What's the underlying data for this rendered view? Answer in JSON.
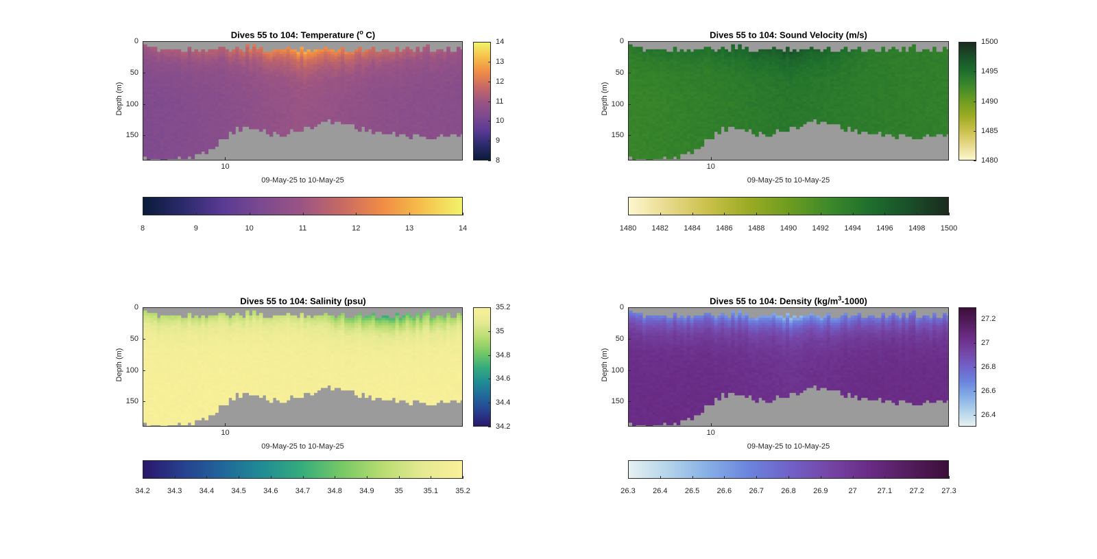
{
  "chart_data": [
    {
      "type": "heatmap",
      "title_main": "Dives 55 to 104: Temperature (",
      "title_sup": "o",
      "title_end": " C)",
      "xlabel": "09-May-25 to 10-May-25",
      "ylabel": "Depth (m)",
      "x_tick_labels": [
        "10"
      ],
      "y_tick_labels": [
        "0",
        "50",
        "100",
        "150"
      ],
      "y_ticks": [
        0,
        50,
        100,
        150
      ],
      "ylim": [
        0,
        190
      ],
      "colorbar_range": [
        8,
        14
      ],
      "colorbar_ticks": [
        "8",
        "9",
        "10",
        "11",
        "12",
        "13",
        "14"
      ],
      "horizontal_colorbar_ticks": [
        "8",
        "9",
        "10",
        "11",
        "12",
        "13",
        "14"
      ],
      "colormap": [
        "#0b1b3a",
        "#2b2a6b",
        "#5a3a94",
        "#7d4a8f",
        "#9c5583",
        "#c86a63",
        "#f08c45",
        "#f6c04a",
        "#f1f36a"
      ],
      "surface_values": [
        11.2,
        11.6,
        13.0,
        11.8,
        11.0
      ],
      "deep_values": [
        10.3,
        10.5,
        10.9,
        10.6,
        10.5
      ],
      "fill_color": "#9b9b9b"
    },
    {
      "type": "heatmap",
      "title_main": "Dives 55 to 104: Sound Velocity (m/s)",
      "title_sup": "",
      "title_end": "",
      "xlabel": "09-May-25 to 10-May-25",
      "ylabel": "Depth (m)",
      "x_tick_labels": [
        "10"
      ],
      "y_tick_labels": [
        "0",
        "50",
        "100",
        "150"
      ],
      "y_ticks": [
        0,
        50,
        100,
        150
      ],
      "ylim": [
        0,
        190
      ],
      "colorbar_range": [
        1480,
        1500
      ],
      "colorbar_ticks": [
        "1480",
        "1485",
        "1490",
        "1495",
        "1500"
      ],
      "horizontal_colorbar_ticks": [
        "1480",
        "1482",
        "1484",
        "1486",
        "1488",
        "1490",
        "1492",
        "1494",
        "1496",
        "1498",
        "1500"
      ],
      "colormap": [
        "#fdf7cf",
        "#e7d98a",
        "#c9c04a",
        "#9bab24",
        "#6e9c20",
        "#3e8a2a",
        "#1f6f2d",
        "#195029",
        "#1b2b1e"
      ],
      "surface_values": [
        1494.5,
        1495.0,
        1497.5,
        1494.0,
        1493.5
      ],
      "deep_values": [
        1493.0,
        1493.5,
        1494.2,
        1493.8,
        1493.5
      ],
      "fill_color": "#9b9b9b"
    },
    {
      "type": "heatmap",
      "title_main": "Dives 55 to 104: Salinity (psu)",
      "title_sup": "",
      "title_end": "",
      "xlabel": "09-May-25 to 10-May-25",
      "ylabel": "Depth (m)",
      "x_tick_labels": [
        "10"
      ],
      "y_tick_labels": [
        "0",
        "50",
        "100",
        "150"
      ],
      "y_ticks": [
        0,
        50,
        100,
        150
      ],
      "ylim": [
        0,
        190
      ],
      "colorbar_range": [
        34.2,
        35.2
      ],
      "colorbar_ticks": [
        "34.2",
        "34.4",
        "34.6",
        "34.8",
        "35",
        "35.2"
      ],
      "horizontal_colorbar_ticks": [
        "34.2",
        "34.3",
        "34.4",
        "34.5",
        "34.6",
        "34.7",
        "34.8",
        "34.9",
        "35",
        "35.1",
        "35.2"
      ],
      "colormap": [
        "#2a176b",
        "#27408f",
        "#21679a",
        "#1f8d94",
        "#37ad7c",
        "#78c965",
        "#b8dc71",
        "#e5ea92",
        "#faf09a"
      ],
      "surface_values": [
        34.95,
        34.95,
        35.0,
        34.7,
        34.9
      ],
      "deep_values": [
        35.18,
        35.18,
        35.17,
        35.18,
        35.18
      ],
      "fill_color": "#9b9b9b"
    },
    {
      "type": "heatmap",
      "title_main": "Dives 55 to 104: Density (kg/m",
      "title_sup": "3",
      "title_end": "-1000)",
      "xlabel": "09-May-25 to 10-May-25",
      "ylabel": "Depth (m)",
      "x_tick_labels": [
        "10"
      ],
      "y_tick_labels": [
        "0",
        "50",
        "100",
        "150"
      ],
      "y_ticks": [
        0,
        50,
        100,
        150
      ],
      "ylim": [
        0,
        190
      ],
      "colorbar_range": [
        26.3,
        27.3
      ],
      "colorbar_ticks": [
        "26.4",
        "26.6",
        "26.8",
        "27",
        "27.2"
      ],
      "horizontal_colorbar_ticks": [
        "26.3",
        "26.4",
        "26.5",
        "26.6",
        "26.7",
        "26.8",
        "26.9",
        "27",
        "27.1",
        "27.2",
        "27.3"
      ],
      "colormap": [
        "#e6f1f2",
        "#b3d3ea",
        "#86aee6",
        "#6b84de",
        "#7062c9",
        "#7546a6",
        "#6a2c86",
        "#541d5e",
        "#3b0f39"
      ],
      "surface_values": [
        26.7,
        26.65,
        26.5,
        26.7,
        26.7
      ],
      "deep_values": [
        27.05,
        27.05,
        27.02,
        27.05,
        27.05
      ],
      "fill_color": "#9b9b9b"
    }
  ]
}
